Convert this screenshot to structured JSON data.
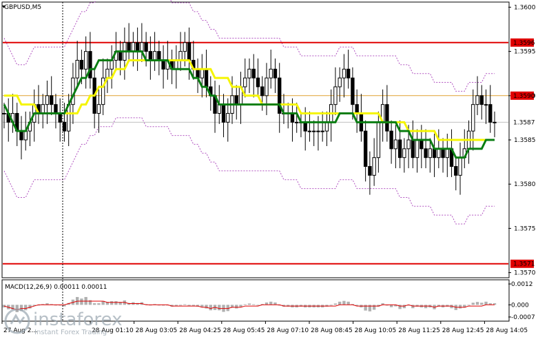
{
  "symbol_label": "GBPUSD,M5",
  "macd_label": "MACD(12,26,9) 0.00011 0.00011",
  "watermark": {
    "brand": "instaforex",
    "tagline": "Instant Forex Trading"
  },
  "colors": {
    "level_line": "#e00000",
    "level_label_bg": "#e00000",
    "ma_slow": "#f5f500",
    "ma_fast": "#0a7d12",
    "candle": "#000000",
    "macd_hist": "#b0b0b0",
    "macd_signal": "#e00000",
    "band": "#b050c0",
    "orange_line": "#e0a030"
  },
  "chart_data": {
    "type": "candlestick",
    "price_axis": {
      "ticks": [
        "1.3600",
        "1.3595",
        "1.3590",
        "1.3585",
        "1.3580",
        "1.3575",
        "1.3570"
      ],
      "ylim": [
        1.35695,
        1.36005
      ]
    },
    "levels": [
      {
        "value": "1.3596",
        "y": 1.3596
      },
      {
        "value": "1.3571",
        "y": 1.3571
      }
    ],
    "current_price": {
      "value": "1.3587",
      "y": 1.3587
    },
    "orange_level": {
      "value": "1.3590",
      "y": 1.359
    },
    "time_labels": [
      "27 Aug 2...",
      "28 Aug 01:10",
      "28 Aug 03:05",
      "28 Aug 04:25",
      "28 Aug 05:45",
      "28 Aug 07:10",
      "28 Aug 08:45",
      "28 Aug 10:05",
      "28 Aug 11:25",
      "28 Aug 12:45",
      "28 Aug 14:05"
    ],
    "close": [
      1.3588,
      1.3587,
      1.3588,
      1.3586,
      1.3585,
      1.3586,
      1.3587,
      1.3589,
      1.3588,
      1.3589,
      1.359,
      1.3589,
      1.3588,
      1.3587,
      1.3586,
      1.3589,
      1.3592,
      1.3594,
      1.3593,
      1.3595,
      1.3592,
      1.3588,
      1.3589,
      1.3592,
      1.3593,
      1.3594,
      1.3595,
      1.3594,
      1.3596,
      1.3595,
      1.3596,
      1.3595,
      1.3596,
      1.3595,
      1.3594,
      1.3595,
      1.3594,
      1.3593,
      1.3594,
      1.3593,
      1.3594,
      1.3595,
      1.3596,
      1.3594,
      1.3593,
      1.3592,
      1.3593,
      1.3591,
      1.359,
      1.3588,
      1.3589,
      1.3587,
      1.3588,
      1.359,
      1.3589,
      1.3591,
      1.3592,
      1.3593,
      1.3592,
      1.3591,
      1.359,
      1.3592,
      1.3593,
      1.3592,
      1.3588,
      1.3588,
      1.3588,
      1.3587,
      1.3587,
      1.3587,
      1.3586,
      1.3586,
      1.3586,
      1.3586,
      1.3586,
      1.3587,
      1.3589,
      1.3591,
      1.3592,
      1.3593,
      1.3592,
      1.3589,
      1.3588,
      1.3586,
      1.3582,
      1.3581,
      1.3583,
      1.3587,
      1.3589,
      1.3586,
      1.3584,
      1.3585,
      1.3583,
      1.3584,
      1.3585,
      1.3583,
      1.3585,
      1.3584,
      1.3583,
      1.3584,
      1.3583,
      1.3584,
      1.3583,
      1.3584,
      1.3582,
      1.3581,
      1.3583,
      1.3584,
      1.3586,
      1.3589,
      1.359,
      1.3589,
      1.3589,
      1.3587,
      1.3587
    ],
    "ma_fast": [
      1.3589,
      1.3588,
      1.3587,
      1.3586,
      1.3586,
      1.3586,
      1.3587,
      1.3588,
      1.3588,
      1.3588,
      1.3588,
      1.3588,
      1.3588,
      1.3588,
      1.3588,
      1.3589,
      1.359,
      1.3591,
      1.3592,
      1.3592,
      1.3593,
      1.3593,
      1.3594,
      1.3594,
      1.3594,
      1.3594,
      1.3595,
      1.3595,
      1.3595,
      1.3595,
      1.3595,
      1.3595,
      1.3595,
      1.3594,
      1.3594,
      1.3594,
      1.3594,
      1.3594,
      1.3594,
      1.3593,
      1.3593,
      1.3593,
      1.3593,
      1.3593,
      1.3592,
      1.3592,
      1.3591,
      1.3591,
      1.359,
      1.359,
      1.3589,
      1.3589,
      1.3589,
      1.3589,
      1.3589,
      1.3589,
      1.3589,
      1.3589,
      1.3589,
      1.3589,
      1.3589,
      1.3589,
      1.3589,
      1.3589,
      1.3589,
      1.3588,
      1.3588,
      1.3588,
      1.3588,
      1.3587,
      1.3587,
      1.3587,
      1.3587,
      1.3587,
      1.3587,
      1.3587,
      1.3587,
      1.3587,
      1.3588,
      1.3588,
      1.3588,
      1.3588,
      1.3587,
      1.3587,
      1.3587,
      1.3587,
      1.3587,
      1.3587,
      1.3587,
      1.3587,
      1.3587,
      1.3587,
      1.3586,
      1.3586,
      1.3586,
      1.3585,
      1.3585,
      1.3585,
      1.3585,
      1.3585,
      1.3584,
      1.3584,
      1.3584,
      1.3584,
      1.3584,
      1.3583,
      1.3583,
      1.3583,
      1.3584,
      1.3584,
      1.3584,
      1.3584,
      1.3585,
      1.3585,
      1.3585
    ],
    "ma_slow": [
      1.359,
      1.359,
      1.359,
      1.359,
      1.3589,
      1.3589,
      1.3589,
      1.3589,
      1.3588,
      1.3588,
      1.3588,
      1.3588,
      1.3588,
      1.3588,
      1.3588,
      1.3588,
      1.3588,
      1.3588,
      1.3589,
      1.3589,
      1.359,
      1.359,
      1.3591,
      1.3591,
      1.3592,
      1.3592,
      1.3593,
      1.3593,
      1.3593,
      1.3594,
      1.3594,
      1.3594,
      1.3594,
      1.3594,
      1.3594,
      1.3594,
      1.3594,
      1.3594,
      1.3594,
      1.3594,
      1.3594,
      1.3594,
      1.3594,
      1.3594,
      1.3593,
      1.3593,
      1.3593,
      1.3593,
      1.3593,
      1.3592,
      1.3592,
      1.3592,
      1.3592,
      1.3591,
      1.3591,
      1.3591,
      1.359,
      1.359,
      1.359,
      1.359,
      1.3589,
      1.3589,
      1.3589,
      1.3589,
      1.3589,
      1.3589,
      1.3589,
      1.3589,
      1.3589,
      1.3588,
      1.3588,
      1.3588,
      1.3588,
      1.3588,
      1.3588,
      1.3588,
      1.3588,
      1.3588,
      1.3588,
      1.3588,
      1.3588,
      1.3588,
      1.3588,
      1.3588,
      1.3588,
      1.3588,
      1.3588,
      1.3588,
      1.3587,
      1.3587,
      1.3587,
      1.3587,
      1.3587,
      1.3587,
      1.3586,
      1.3586,
      1.3586,
      1.3586,
      1.3586,
      1.3586,
      1.3586,
      1.3585,
      1.3585,
      1.3585,
      1.3585,
      1.3585,
      1.3585,
      1.3585,
      1.3585,
      1.3585,
      1.3585,
      1.3585,
      1.3585,
      1.3585,
      1.3585
    ],
    "macd": {
      "ticks": [
        "0.0012",
        "0.000",
        "-0.0007"
      ],
      "ylim": [
        -0.0009,
        0.0014
      ]
    }
  }
}
